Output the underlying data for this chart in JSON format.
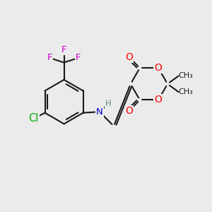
{
  "background_color": "#ebebeb",
  "bond_color": "#1a1a1a",
  "bond_width": 1.5,
  "atom_colors": {
    "O": "#ff0000",
    "N": "#0000cc",
    "F": "#cc00cc",
    "Cl": "#00aa00",
    "H": "#5a8a8a",
    "C": "#1a1a1a"
  },
  "font_size": 9.5,
  "figsize": [
    3.0,
    3.0
  ],
  "dpi": 100
}
